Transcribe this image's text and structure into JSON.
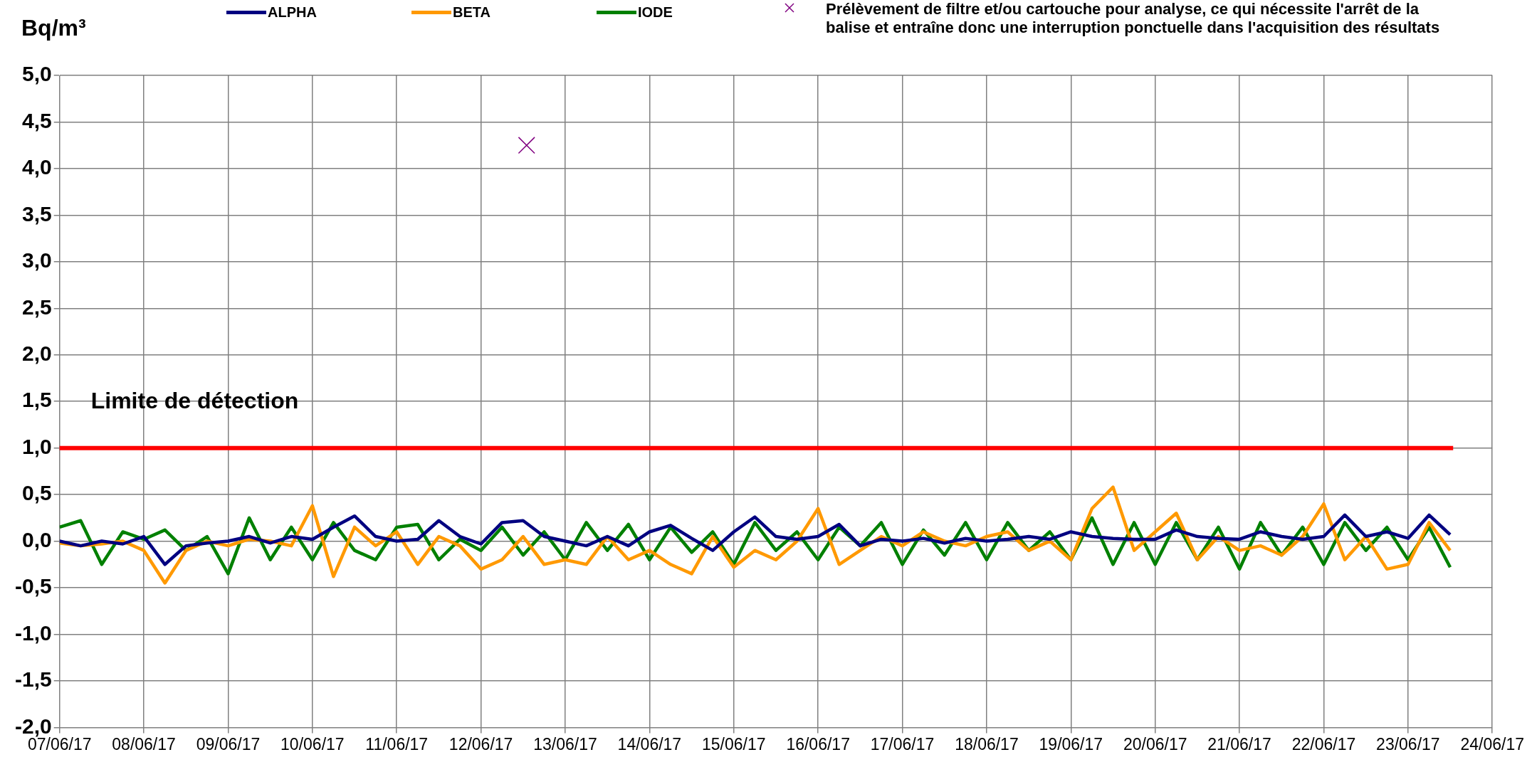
{
  "chart_data": {
    "type": "line",
    "ylabel": "Bq/m³",
    "legend": "top",
    "grid": true,
    "marker": "none",
    "x": [
      "--06-07T00:00",
      "--06-07T06:00",
      "--06-07T12:00",
      "--06-07T18:00",
      "--06-08T00:00",
      "--06-08T06:00",
      "--06-08T12:00",
      "--06-08T18:00",
      "--06-09T00:00",
      "--06-09T06:00",
      "--06-09T12:00",
      "--06-09T18:00",
      "--06-10T00:00",
      "--06-10T06:00",
      "--06-10T12:00",
      "--06-10T18:00",
      "--06-11T00:00",
      "--06-11T06:00",
      "--06-11T12:00",
      "--06-11T18:00",
      "--06-12T00:00",
      "--06-12T06:00",
      "--06-12T12:00",
      "--06-12T18:00",
      "--06-13T00:00",
      "--06-13T06:00",
      "--06-13T12:00",
      "--06-13T18:00",
      "--06-14T00:00",
      "--06-14T06:00",
      "--06-14T12:00",
      "--06-14T18:00",
      "--06-15T00:00",
      "--06-15T06:00",
      "--06-15T12:00",
      "--06-15T18:00",
      "--06-16T00:00",
      "--06-16T06:00",
      "--06-16T12:00",
      "--06-16T18:00",
      "--06-17T00:00",
      "--06-17T06:00",
      "--06-17T12:00",
      "--06-17T18:00",
      "--06-18T00:00",
      "--06-18T06:00",
      "--06-18T12:00",
      "--06-18T18:00",
      "--06-19T00:00",
      "--06-19T06:00",
      "--06-19T12:00",
      "--06-19T18:00",
      "--06-20T00:00",
      "--06-20T06:00",
      "--06-20T12:00",
      "--06-20T18:00",
      "--06-21T00:00",
      "--06-21T06:00",
      "--06-21T12:00",
      "--06-21T18:00",
      "--06-22T00:00",
      "--06-22T06:00",
      "--06-22T12:00",
      "--06-22T18:00",
      "--06-23T00:00",
      "--06-23T06:00",
      "--06-23T12:00"
    ],
    "series": [
      {
        "name": "ALPHA",
        "color": "#000080",
        "values": [
          0,
          -0.05,
          0,
          -0.03,
          0.05,
          -0.25,
          -0.05,
          -0.02,
          0,
          0.05,
          -0.02,
          0.05,
          0.02,
          0.15,
          0.27,
          0.05,
          0,
          0.02,
          0.22,
          0.05,
          -0.03,
          0.2,
          0.22,
          0.05,
          0,
          -0.05,
          0.05,
          -0.05,
          0.1,
          0.17,
          0.03,
          -0.1,
          0.1,
          0.26,
          0.05,
          0.02,
          0.05,
          0.18,
          -0.05,
          0.02,
          0,
          0.03,
          -0.02,
          0.03,
          0,
          0.02,
          0.05,
          0.02,
          0.1,
          0.05,
          0.03,
          0.02,
          0.02,
          0.12,
          0.05,
          0.03,
          0.02,
          0.1,
          0.05,
          0.02,
          0.05,
          0.28,
          0.05,
          0.1,
          0.03,
          0.28,
          0.07
        ]
      },
      {
        "name": "BETA",
        "color": "#ff9900",
        "values": [
          -0.02,
          -0.05,
          -0.03,
          0,
          -0.1,
          -0.45,
          -0.1,
          0,
          -0.05,
          0.02,
          0,
          -0.05,
          0.38,
          -0.38,
          0.15,
          -0.05,
          0.1,
          -0.25,
          0.05,
          -0.05,
          -0.3,
          -0.2,
          0.05,
          -0.25,
          -0.2,
          -0.25,
          0.05,
          -0.2,
          -0.1,
          -0.25,
          -0.35,
          0.05,
          -0.28,
          -0.1,
          -0.2,
          0,
          0.35,
          -0.25,
          -0.1,
          0.05,
          -0.05,
          0.1,
          0,
          -0.05,
          0.05,
          0.1,
          -0.1,
          0,
          -0.2,
          0.35,
          0.58,
          -0.1,
          0.1,
          0.3,
          -0.2,
          0.05,
          -0.1,
          -0.05,
          -0.15,
          0.05,
          0.4,
          -0.2,
          0.05,
          -0.3,
          -0.25,
          0.2,
          -0.1
        ]
      },
      {
        "name": "IODE",
        "color": "#008000",
        "values": [
          0.15,
          0.22,
          -0.25,
          0.1,
          0.02,
          0.12,
          -0.1,
          0.05,
          -0.35,
          0.25,
          -0.2,
          0.15,
          -0.2,
          0.2,
          -0.1,
          -0.2,
          0.15,
          0.18,
          -0.2,
          0.02,
          -0.1,
          0.15,
          -0.15,
          0.1,
          -0.2,
          0.2,
          -0.1,
          0.18,
          -0.2,
          0.15,
          -0.12,
          0.1,
          -0.25,
          0.2,
          -0.1,
          0.1,
          -0.2,
          0.15,
          -0.05,
          0.2,
          -0.25,
          0.12,
          -0.15,
          0.2,
          -0.2,
          0.2,
          -0.1,
          0.1,
          -0.2,
          0.25,
          -0.25,
          0.2,
          -0.25,
          0.2,
          -0.2,
          0.15,
          -0.3,
          0.2,
          -0.15,
          0.15,
          -0.25,
          0.2,
          -0.1,
          0.15,
          -0.2,
          0.15,
          -0.28
        ]
      },
      {
        "name": "Prélèvement de filtre et/ou cartouche pour analyse, ce qui nécessite l'arrêt de la balise et entraîne donc une interruption ponctuelle dans l'acquisition des résultats",
        "type": "scatter",
        "marker": "cross",
        "color": "#800080",
        "x": [
          "--06-12T13:00"
        ],
        "values": [
          4.25
        ]
      }
    ],
    "xlim": [
      "--06-07",
      "--06-24"
    ],
    "xticks": [
      {
        "value": "--06-07",
        "label": "07/06/17"
      },
      {
        "value": "--06-08",
        "label": "08/06/17"
      },
      {
        "value": "--06-09",
        "label": "09/06/17"
      },
      {
        "value": "--06-10",
        "label": "10/06/17"
      },
      {
        "value": "--06-11",
        "label": "11/06/17"
      },
      {
        "value": "--06-12",
        "label": "12/06/17"
      },
      {
        "value": "--06-13",
        "label": "13/06/17"
      },
      {
        "value": "--06-14",
        "label": "14/06/17"
      },
      {
        "value": "--06-15",
        "label": "15/06/17"
      },
      {
        "value": "--06-16",
        "label": "16/06/17"
      },
      {
        "value": "--06-17",
        "label": "17/06/17"
      },
      {
        "value": "--06-18",
        "label": "18/06/17"
      },
      {
        "value": "--06-19",
        "label": "19/06/17"
      },
      {
        "value": "--06-20",
        "label": "20/06/17"
      },
      {
        "value": "--06-21",
        "label": "21/06/17"
      },
      {
        "value": "--06-22",
        "label": "22/06/17"
      },
      {
        "value": "--06-23",
        "label": "23/06/17"
      },
      {
        "value": "--06-24",
        "label": "24/06/17"
      }
    ],
    "ylim": [
      -2,
      5
    ],
    "yticks": [
      {
        "value": -2,
        "label": "-2,0"
      },
      {
        "value": -1.5,
        "label": "-1,5"
      },
      {
        "value": -1,
        "label": "-1,0"
      },
      {
        "value": -0.5,
        "label": "-0,5"
      },
      {
        "value": 0,
        "label": "0,0"
      },
      {
        "value": 0.5,
        "label": "0,5"
      },
      {
        "value": 1,
        "label": "1,0"
      },
      {
        "value": 1.5,
        "label": "1,5"
      },
      {
        "value": 2,
        "label": "2,0"
      },
      {
        "value": 2.5,
        "label": "2,5"
      },
      {
        "value": 3,
        "label": "3,0"
      },
      {
        "value": 3.5,
        "label": "3,5"
      },
      {
        "value": 4,
        "label": "4,0"
      },
      {
        "value": 4.5,
        "label": "4,5"
      },
      {
        "value": 5,
        "label": "5,0"
      }
    ],
    "ref_lines": [
      {
        "axis": "y",
        "value": 1,
        "label": "Limite de détection",
        "color": "#ff0000"
      }
    ]
  }
}
